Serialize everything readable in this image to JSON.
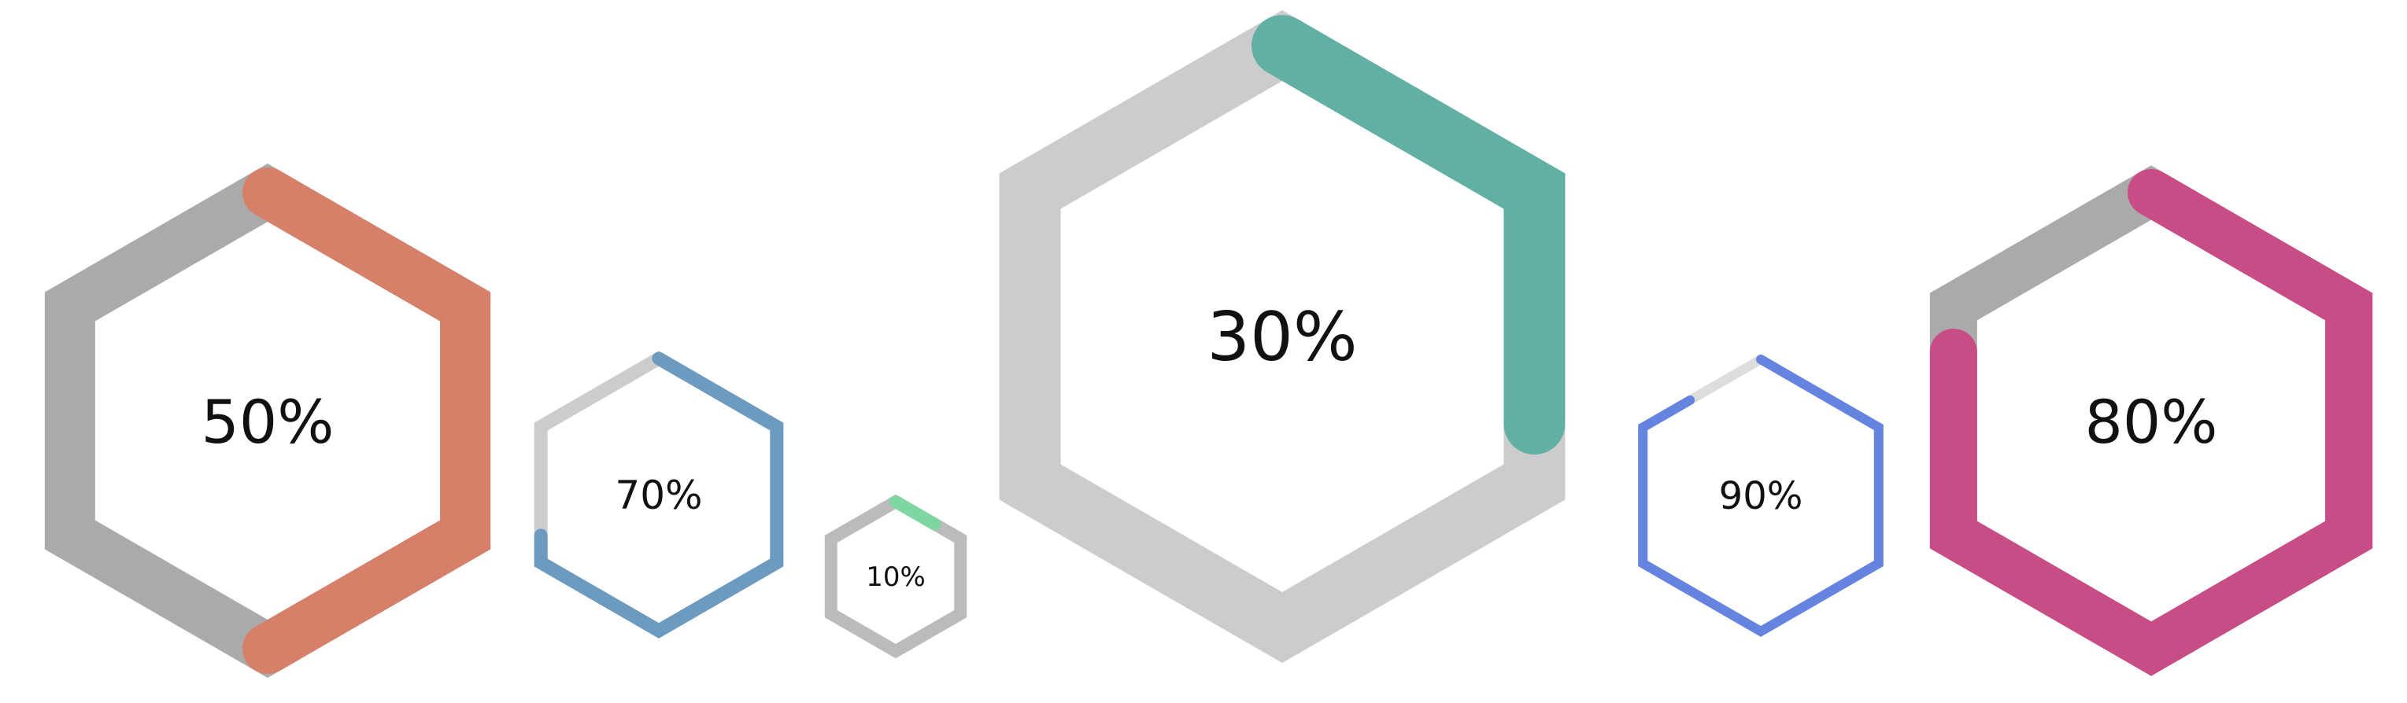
{
  "gauges": [
    {
      "label": "50%",
      "value": 0.5,
      "color": "#D6806A",
      "track": "#AAAAAA"
    },
    {
      "label": "70%",
      "value": 0.7,
      "color": "#6C9BBF",
      "track": "#CCCCCC"
    },
    {
      "label": "10%",
      "value": 0.1,
      "color": "#7ED6A0",
      "track": "#BBBBBB"
    },
    {
      "label": "30%",
      "value": 0.3,
      "color": "#62B0A4",
      "track": "#CCCCCC"
    },
    {
      "label": "90%",
      "value": 0.9,
      "color": "#6484E0",
      "track": "#DDDDDD"
    },
    {
      "label": "80%",
      "value": 0.8,
      "color": "#C84C85",
      "track": "#AAAAAA"
    }
  ]
}
